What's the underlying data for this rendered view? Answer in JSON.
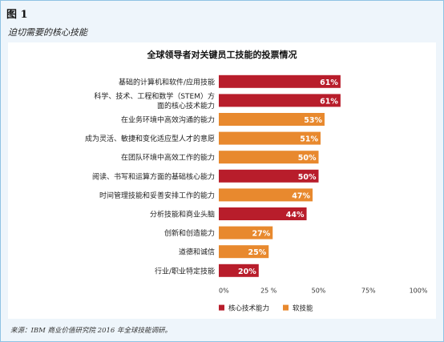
{
  "figure_label": "图 1",
  "figure_subtitle": "迫切需要的核心技能",
  "source_note": "来源：IBM 商业价值研究院 2016 年全球技能调研。",
  "colors": {
    "core": "#b81d2b",
    "soft": "#e8892e",
    "frame_border": "#8fc3e4",
    "frame_bg": "#eef5fb"
  },
  "chart_data": {
    "type": "bar",
    "orientation": "horizontal",
    "title": "全球领导者对关键员工技能的投票情况",
    "categories": [
      [
        "基础的计算机和软件/应用技能"
      ],
      [
        "科学、技术、工程和数学（STEM）方",
        "面的核心技术能力"
      ],
      [
        "在业务环境中高效沟通的能力"
      ],
      [
        "成为灵活、敏捷和变化适应型人才的意愿"
      ],
      [
        "在团队环境中高效工作的能力"
      ],
      [
        "阅读、书写和运算方面的基础核心能力"
      ],
      [
        "时间管理技能和妥善安排工作的能力"
      ],
      [
        "分析技能和商业头脑"
      ],
      [
        "创新和创造能力"
      ],
      [
        "道德和诚信"
      ],
      [
        "行业/职业特定技能"
      ]
    ],
    "values": [
      61,
      61,
      53,
      51,
      50,
      50,
      47,
      44,
      27,
      25,
      20
    ],
    "value_labels": [
      "61%",
      "61%",
      "53%",
      "51%",
      "50%",
      "50%",
      "47%",
      "44%",
      "27%",
      "25%",
      "20%"
    ],
    "series_index": [
      0,
      0,
      1,
      1,
      1,
      0,
      1,
      0,
      1,
      1,
      0
    ],
    "series": [
      {
        "name": "核心技术能力",
        "color": "#b81d2b"
      },
      {
        "name": "软技能",
        "color": "#e8892e"
      }
    ],
    "xlim": [
      0,
      100
    ],
    "xticks": [
      0,
      25,
      50,
      75,
      100
    ],
    "xtick_labels": [
      "0%",
      "25 %",
      "50%",
      "75%",
      "100%"
    ],
    "legend_position": "bottom",
    "grid": false
  }
}
